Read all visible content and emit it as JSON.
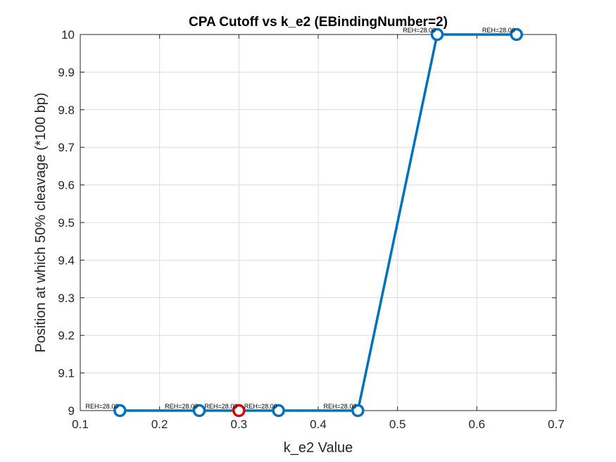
{
  "chart_data": {
    "type": "line",
    "title": "CPA Cutoff vs k_e2 (EBindingNumber=2)",
    "xlabel": "k_e2 Value",
    "ylabel": "Position at which 50% cleavage (*100 bp)",
    "xlim": [
      0.1,
      0.7
    ],
    "ylim": [
      9,
      10
    ],
    "xticks": [
      0.1,
      0.2,
      0.3,
      0.4,
      0.5,
      0.6,
      0.7
    ],
    "xtick_labels": [
      "0.1",
      "0.2",
      "0.3",
      "0.4",
      "0.5",
      "0.6",
      "0.7"
    ],
    "yticks": [
      9,
      9.1,
      9.2,
      9.3,
      9.4,
      9.5,
      9.6,
      9.7,
      9.8,
      9.9,
      10
    ],
    "ytick_labels": [
      "9",
      "9.1",
      "9.2",
      "9.3",
      "9.4",
      "9.5",
      "9.6",
      "9.7",
      "9.8",
      "9.9",
      "10"
    ],
    "grid": true,
    "series": [
      {
        "color": "#0072BD",
        "x": [
          0.15,
          0.25,
          0.35,
          0.45,
          0.55,
          0.65
        ],
        "y": [
          9,
          9,
          9,
          9,
          10,
          10
        ],
        "labels": [
          "REH=28.00",
          "REH=28.00",
          "REH=28.00",
          "REH=28.00",
          "REH=28.00",
          "REH=28.00"
        ]
      }
    ],
    "highlight": {
      "color": "#E00000",
      "x": 0.3,
      "y": 9,
      "label": "REH=28.00"
    }
  }
}
